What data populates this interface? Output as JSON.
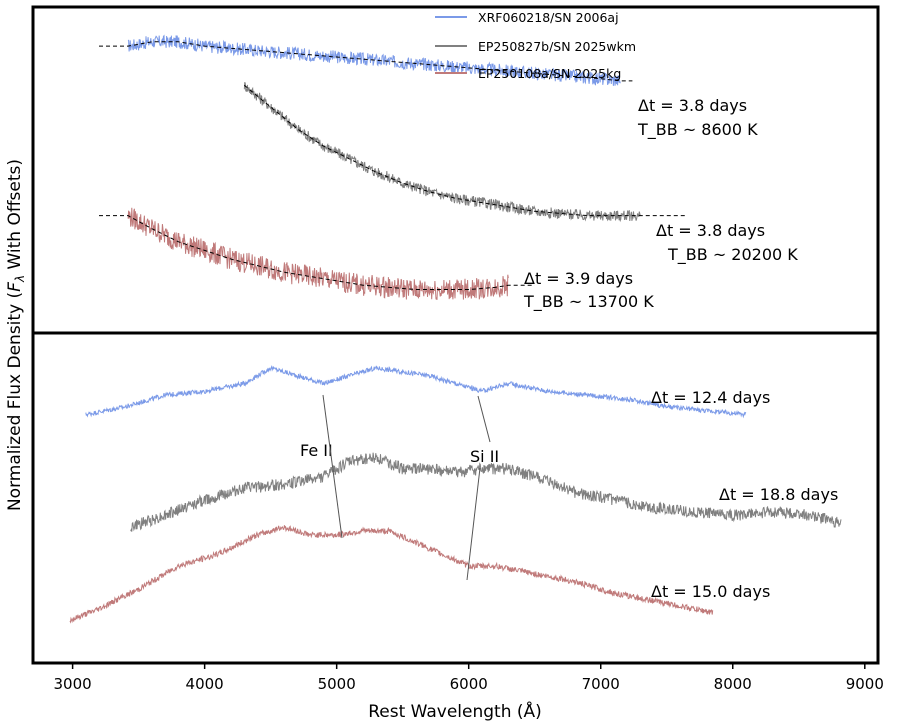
{
  "chart_data": {
    "type": "line",
    "xlabel": "Rest Wavelength (Å)",
    "ylabel": "Normalized Flux Density (F_λ With Offsets)",
    "xlim": [
      2700,
      9100
    ],
    "xticks": [
      "3000",
      "4000",
      "5000",
      "6000",
      "7000",
      "8000",
      "9000"
    ],
    "x_tick_values": [
      3000,
      4000,
      5000,
      6000,
      7000,
      8000,
      9000
    ],
    "grid": false,
    "legend_position": "top-right",
    "panels": [
      {
        "name": "top",
        "series": [
          {
            "name": "XRF060218/SN 2006aj",
            "color": "#7b9ae8",
            "x": [
              3420,
              3600,
              3800,
              4000,
              4200,
              4400,
              4600,
              4800,
              5000,
              5200,
              5400,
              5600,
              5800,
              6000,
              6200,
              6400,
              6600,
              6800,
              7000,
              7150
            ],
            "y": [
              0.86,
              0.87,
              0.87,
              0.86,
              0.855,
              0.85,
              0.845,
              0.84,
              0.835,
              0.83,
              0.825,
              0.82,
              0.815,
              0.81,
              0.805,
              0.8,
              0.795,
              0.79,
              0.785,
              0.78
            ]
          },
          {
            "name": "EP250827b/SN 2025wkm",
            "color": "#808080",
            "x": [
              4300,
              4500,
              4700,
              4900,
              5100,
              5300,
              5500,
              5700,
              5900,
              6100,
              6300,
              6500,
              6700,
              6900,
              7100,
              7300
            ],
            "y": [
              0.77,
              0.72,
              0.67,
              0.63,
              0.6,
              0.57,
              0.545,
              0.525,
              0.51,
              0.5,
              0.49,
              0.48,
              0.475,
              0.47,
              0.47,
              0.47
            ]
          },
          {
            "name": "EP250108a/SN 2025kg",
            "color": "#c07a7a",
            "x": [
              3420,
              3600,
              3800,
              4000,
              4200,
              4400,
              4600,
              4800,
              5000,
              5200,
              5400,
              5600,
              5800,
              6000,
              6200,
              6300
            ],
            "y": [
              0.47,
              0.44,
              0.41,
              0.39,
              0.37,
              0.355,
              0.34,
              0.33,
              0.32,
              0.31,
              0.305,
              0.3,
              0.3,
              0.3,
              0.305,
              0.31
            ]
          }
        ],
        "blackbody_fits": [
          {
            "x0": 3200,
            "x1": 7250,
            "T_K": 8600
          },
          {
            "x0": 4300,
            "x1": 7650,
            "T_K": 20200
          },
          {
            "x0": 3200,
            "x1": 6500,
            "T_K": 13700
          }
        ],
        "annotations": [
          {
            "dt": "Δt = 3.8 days",
            "tbb": "T_BB ~ 8600 K"
          },
          {
            "dt": "Δt = 3.8 days",
            "tbb": "T_BB ~ 20200 K"
          },
          {
            "dt": "Δt = 3.9 days",
            "tbb": "T_BB ~ 13700 K"
          }
        ]
      },
      {
        "name": "bottom",
        "series": [
          {
            "name": "XRF060218/SN 2006aj",
            "color": "#7b9ae8",
            "label": "Δt = 12.4 days",
            "x": [
              3100,
              3400,
              3700,
              4000,
              4300,
              4500,
              4700,
              4900,
              5100,
              5300,
              5500,
              5700,
              5900,
              6100,
              6300,
              6600,
              6900,
              7200,
              7500,
              7800,
              8100
            ],
            "y": [
              0.74,
              0.76,
              0.79,
              0.8,
              0.82,
              0.86,
              0.84,
              0.82,
              0.84,
              0.86,
              0.85,
              0.84,
              0.82,
              0.8,
              0.82,
              0.8,
              0.79,
              0.78,
              0.76,
              0.75,
              0.74
            ]
          },
          {
            "name": "EP250827b/SN 2025wkm",
            "color": "#808080",
            "label": "Δt = 18.8 days",
            "x": [
              3440,
              3700,
              4000,
              4300,
              4600,
              4900,
              5100,
              5300,
              5500,
              5700,
              5900,
              6100,
              6300,
              6500,
              6800,
              7100,
              7400,
              7700,
              8000,
              8300,
              8600,
              8820
            ],
            "y": [
              0.45,
              0.48,
              0.52,
              0.55,
              0.56,
              0.58,
              0.62,
              0.63,
              0.6,
              0.6,
              0.59,
              0.6,
              0.6,
              0.58,
              0.54,
              0.52,
              0.5,
              0.49,
              0.48,
              0.49,
              0.48,
              0.46
            ]
          },
          {
            "name": "EP250108a/SN 2025kg",
            "color": "#c07a7a",
            "label": "Δt = 15.0 days",
            "x": [
              2980,
              3200,
              3500,
              3800,
              4100,
              4400,
              4600,
              4800,
              5000,
              5200,
              5400,
              5600,
              5800,
              6000,
              6200,
              6500,
              6800,
              7100,
              7400,
              7700,
              7850
            ],
            "y": [
              0.21,
              0.24,
              0.29,
              0.35,
              0.38,
              0.43,
              0.45,
              0.43,
              0.43,
              0.44,
              0.44,
              0.41,
              0.38,
              0.35,
              0.35,
              0.33,
              0.31,
              0.28,
              0.26,
              0.24,
              0.23
            ]
          }
        ],
        "line_ids": [
          {
            "label": "Fe II"
          },
          {
            "label": "Si II"
          }
        ]
      }
    ]
  }
}
